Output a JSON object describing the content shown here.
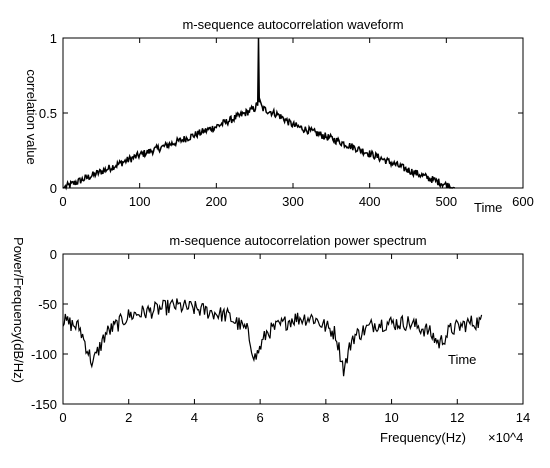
{
  "chart_data": [
    {
      "type": "line",
      "title": "m-sequence autocorrelation waveform",
      "xlabel": "Time",
      "ylabel": "correlation value",
      "xlim": [
        0,
        600
      ],
      "ylim": [
        0,
        1
      ],
      "xticks": [
        0,
        100,
        200,
        300,
        400,
        500,
        600
      ],
      "yticks": [
        0,
        0.5,
        1
      ],
      "grid": false,
      "series": [
        {
          "x": [
            0,
            50,
            100,
            150,
            200,
            230,
            250,
            254,
            255,
            256,
            260,
            280,
            300,
            350,
            400,
            450,
            500,
            511
          ],
          "y": [
            0,
            0.11,
            0.22,
            0.31,
            0.41,
            0.48,
            0.53,
            0.56,
            1.0,
            0.58,
            0.53,
            0.49,
            0.42,
            0.33,
            0.23,
            0.12,
            0.02,
            0
          ]
        }
      ]
    },
    {
      "type": "line",
      "title": "m-sequence autocorrelation power spectrum",
      "xlabel": "Frequency(Hz)",
      "ylabel": "Power/Frequency(dB/Hz)",
      "x_multiplier": "×10^4",
      "xlim": [
        0,
        14
      ],
      "ylim": [
        -150,
        0
      ],
      "xticks": [
        0,
        2,
        4,
        6,
        8,
        10,
        12,
        14
      ],
      "yticks": [
        0,
        -50,
        -100,
        -150
      ],
      "annotation": "Time",
      "grid": false,
      "series": [
        {
          "x": [
            0,
            0.5,
            0.9,
            1.3,
            2,
            3,
            3.4,
            4,
            5,
            5.6,
            5.85,
            6.2,
            7,
            7.6,
            8.3,
            8.55,
            8.8,
            9.5,
            10.5,
            11.1,
            11.45,
            11.8,
            12.4,
            12.75
          ],
          "y": [
            -65,
            -72,
            -108,
            -78,
            -60,
            -53,
            -50,
            -53,
            -60,
            -75,
            -103,
            -77,
            -63,
            -62,
            -78,
            -115,
            -82,
            -68,
            -67,
            -75,
            -88,
            -74,
            -67,
            -66
          ]
        }
      ]
    }
  ]
}
